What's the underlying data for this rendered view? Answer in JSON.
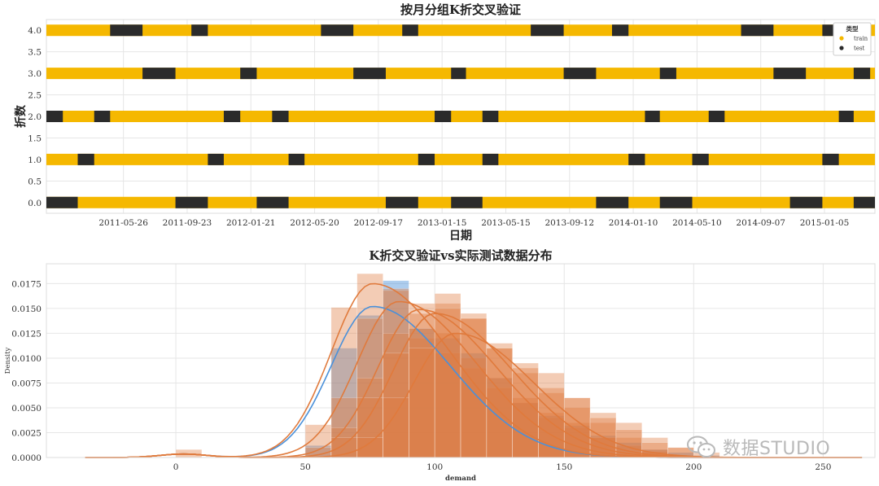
{
  "chart_data": [
    {
      "type": "scatter",
      "title": "按月分组K折交叉验证",
      "xlabel": "日期",
      "ylabel": "折数",
      "x_tick_labels": [
        "2011-05-26",
        "2011-09-23",
        "2012-01-21",
        "2012-05-20",
        "2012-09-17",
        "2013-01-15",
        "2013-05-15",
        "2013-09-12",
        "2014-01-10",
        "2014-05-10",
        "2014-09-07",
        "2015-01-05"
      ],
      "y_tick_labels": [
        "0.0",
        "0.5",
        "1.0",
        "1.5",
        "2.0",
        "2.5",
        "3.0",
        "3.5",
        "4.0"
      ],
      "ylim": [
        -0.25,
        4.25
      ],
      "xlim": [
        "2011-01-01",
        "2015-04-10"
      ],
      "legend": {
        "title": "类型",
        "position": "top-right",
        "entries": [
          {
            "name": "train",
            "color": "#f5b800"
          },
          {
            "name": "test",
            "color": "#2b2b2b"
          }
        ]
      },
      "grid": true,
      "series": [
        {
          "name": "train",
          "color": "#f5b800",
          "description": "every day from 2011-01-01 to 2015-04-10 not assigned to test, on each fold row"
        },
        {
          "name": "test",
          "color": "#2b2b2b",
          "folds": {
            "0": [
              [
                "2011-01",
                "2011-02"
              ],
              [
                "2011-09",
                "2011-10"
              ],
              [
                "2012-02",
                "2012-03"
              ],
              [
                "2012-10",
                "2012-11"
              ],
              [
                "2013-02",
                "2013-03"
              ],
              [
                "2013-11",
                "2013-12"
              ],
              [
                "2014-03",
                "2014-04"
              ],
              [
                "2014-11",
                "2014-12"
              ],
              [
                "2015-03",
                "2015-04"
              ]
            ],
            "1": [
              [
                "2011-03",
                "2011-03"
              ],
              [
                "2011-11",
                "2011-11"
              ],
              [
                "2012-04",
                "2012-04"
              ],
              [
                "2012-12",
                "2012-12"
              ],
              [
                "2013-04",
                "2013-04"
              ],
              [
                "2014-01",
                "2014-01"
              ],
              [
                "2014-05",
                "2014-05"
              ],
              [
                "2015-01",
                "2015-01"
              ],
              [
                "2015-05",
                "2015-05"
              ]
            ],
            "2": [
              [
                "2011-01",
                "2011-01"
              ],
              [
                "2011-04",
                "2011-04"
              ],
              [
                "2011-12",
                "2011-12"
              ],
              [
                "2012-03",
                "2012-03"
              ],
              [
                "2013-01",
                "2013-01"
              ],
              [
                "2013-04",
                "2013-04"
              ],
              [
                "2014-02",
                "2014-02"
              ],
              [
                "2014-06",
                "2014-06"
              ],
              [
                "2015-02",
                "2015-02"
              ]
            ],
            "3": [
              [
                "2011-07",
                "2011-08"
              ],
              [
                "2012-01",
                "2012-01"
              ],
              [
                "2012-08",
                "2012-09"
              ],
              [
                "2013-02",
                "2013-02"
              ],
              [
                "2013-09",
                "2013-10"
              ],
              [
                "2014-03",
                "2014-03"
              ],
              [
                "2014-10",
                "2014-11"
              ],
              [
                "2015-03",
                "2015-03"
              ]
            ],
            "4": [
              [
                "2011-05",
                "2011-06"
              ],
              [
                "2011-10",
                "2011-10"
              ],
              [
                "2012-06",
                "2012-07"
              ],
              [
                "2012-11",
                "2012-11"
              ],
              [
                "2013-07",
                "2013-08"
              ],
              [
                "2013-12",
                "2013-12"
              ],
              [
                "2014-08",
                "2014-09"
              ],
              [
                "2015-01",
                "2015-01"
              ]
            ]
          }
        }
      ]
    },
    {
      "type": "histogram",
      "title": "K折交叉验证vs实际测试数据分布",
      "xlabel": "demand",
      "ylabel": "Density",
      "xlim": [
        -50,
        270
      ],
      "ylim": [
        0,
        0.0195
      ],
      "x_tick_labels": [
        "0",
        "50",
        "100",
        "150",
        "200",
        "250"
      ],
      "y_tick_labels": [
        "0.0000",
        "0.0025",
        "0.0050",
        "0.0075",
        "0.0100",
        "0.0125",
        "0.0150",
        "0.0175"
      ],
      "grid": true,
      "bin_width": 10,
      "series": [
        {
          "color": "#4a90d9",
          "kde_peak_x": 76,
          "kde_peak_y": 0.0152,
          "bins": [
            [
              50,
              0.0012
            ],
            [
              60,
              0.011
            ],
            [
              70,
              0.0143
            ],
            [
              80,
              0.0178
            ],
            [
              90,
              0.013
            ],
            [
              100,
              0.012
            ],
            [
              110,
              0.0105
            ],
            [
              120,
              0.008
            ],
            [
              130,
              0.0055
            ],
            [
              140,
              0.0042
            ],
            [
              150,
              0.0032
            ],
            [
              160,
              0.0022
            ],
            [
              170,
              0.0015
            ],
            [
              180,
              0.0008
            ],
            [
              190,
              0.0005
            ],
            [
              200,
              0.0002
            ]
          ]
        },
        {
          "color": "#e07a3c",
          "kde_peak_x": 76,
          "kde_peak_y": 0.0175,
          "bins": [
            [
              0,
              0.0008
            ],
            [
              50,
              0.0033
            ],
            [
              60,
              0.0151
            ],
            [
              70,
              0.0185
            ],
            [
              80,
              0.0168
            ],
            [
              90,
              0.012
            ],
            [
              100,
              0.0105
            ],
            [
              110,
              0.009
            ],
            [
              120,
              0.007
            ],
            [
              130,
              0.0055
            ],
            [
              140,
              0.004
            ],
            [
              150,
              0.003
            ],
            [
              160,
              0.002
            ],
            [
              170,
              0.0012
            ],
            [
              180,
              0.0006
            ]
          ]
        },
        {
          "color": "#e07a3c",
          "kde_peak_x": 86,
          "kde_peak_y": 0.0157,
          "bins": [
            [
              50,
              0.001
            ],
            [
              60,
              0.006
            ],
            [
              70,
              0.014
            ],
            [
              80,
              0.017
            ],
            [
              90,
              0.0155
            ],
            [
              100,
              0.0125
            ],
            [
              110,
              0.01
            ],
            [
              120,
              0.008
            ],
            [
              130,
              0.006
            ],
            [
              140,
              0.0045
            ],
            [
              150,
              0.0035
            ],
            [
              160,
              0.002
            ]
          ]
        },
        {
          "color": "#e07a3c",
          "kde_peak_x": 94,
          "kde_peak_y": 0.0149,
          "bins": [
            [
              60,
              0.003
            ],
            [
              70,
              0.008
            ],
            [
              80,
              0.0125
            ],
            [
              90,
              0.0145
            ],
            [
              100,
              0.0155
            ],
            [
              110,
              0.014
            ],
            [
              120,
              0.011
            ],
            [
              130,
              0.0085
            ],
            [
              140,
              0.0065
            ],
            [
              150,
              0.005
            ],
            [
              160,
              0.0035
            ],
            [
              170,
              0.002
            ],
            [
              180,
              0.0008
            ]
          ]
        },
        {
          "color": "#e07a3c",
          "kde_peak_x": 100,
          "kde_peak_y": 0.0145,
          "bins": [
            [
              60,
              0.002
            ],
            [
              70,
              0.006
            ],
            [
              80,
              0.0105
            ],
            [
              90,
              0.013
            ],
            [
              100,
              0.0165
            ],
            [
              110,
              0.0145
            ],
            [
              120,
              0.0115
            ],
            [
              130,
              0.009
            ],
            [
              140,
              0.007
            ],
            [
              150,
              0.006
            ],
            [
              160,
              0.0045
            ],
            [
              170,
              0.0035
            ],
            [
              180,
              0.002
            ],
            [
              190,
              0.001
            ]
          ]
        },
        {
          "color": "#e07a3c",
          "kde_peak_x": 108,
          "kde_peak_y": 0.0125,
          "bins": [
            [
              70,
              0.002
            ],
            [
              80,
              0.006
            ],
            [
              90,
              0.011
            ],
            [
              100,
              0.015
            ],
            [
              110,
              0.014
            ],
            [
              120,
              0.011
            ],
            [
              130,
              0.0095
            ],
            [
              140,
              0.0085
            ],
            [
              150,
              0.006
            ],
            [
              160,
              0.004
            ],
            [
              170,
              0.0028
            ],
            [
              180,
              0.0015
            ],
            [
              190,
              0.001
            ],
            [
              200,
              0.0005
            ]
          ]
        }
      ]
    }
  ],
  "watermark": {
    "text": "数据STUDIO",
    "icon": "wechat-icon"
  }
}
